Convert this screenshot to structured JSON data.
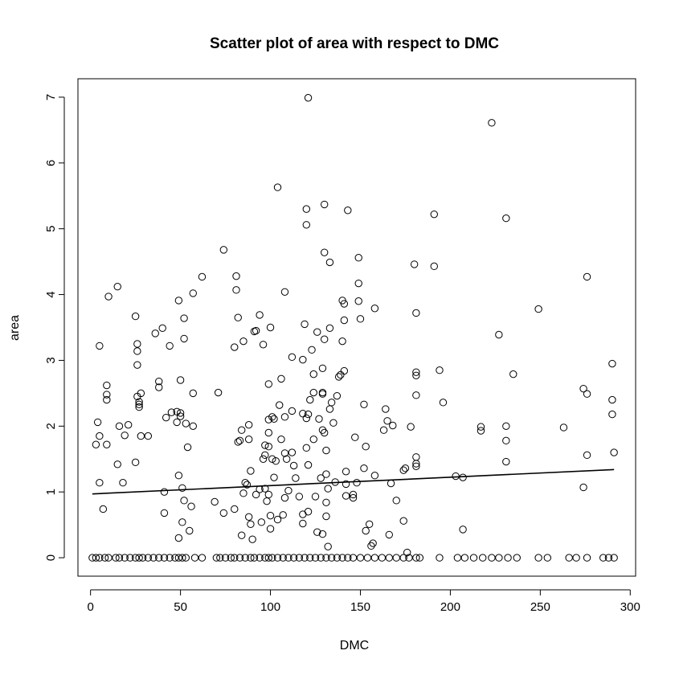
{
  "chart_data": {
    "type": "scatter",
    "title": "Scatter plot of area with respect to DMC",
    "xlabel": "DMC",
    "ylabel": "area",
    "xlim": [
      -7,
      303
    ],
    "ylim": [
      -0.28,
      7.28
    ],
    "x_ticks": [
      0,
      50,
      100,
      150,
      200,
      250,
      300
    ],
    "y_ticks": [
      0,
      1,
      2,
      3,
      4,
      5,
      6,
      7
    ],
    "grid": false,
    "legend": "none",
    "marker": "open-circle",
    "trend_line": {
      "x": [
        1,
        291
      ],
      "y": [
        0.97,
        1.34
      ]
    },
    "points": [
      [
        1,
        0
      ],
      [
        3,
        0
      ],
      [
        5,
        0
      ],
      [
        8,
        0
      ],
      [
        10,
        0
      ],
      [
        14,
        0
      ],
      [
        16,
        0
      ],
      [
        19,
        0
      ],
      [
        22,
        0
      ],
      [
        25,
        0
      ],
      [
        27,
        0
      ],
      [
        29,
        0
      ],
      [
        32,
        0
      ],
      [
        35,
        0
      ],
      [
        38,
        0
      ],
      [
        41,
        0
      ],
      [
        44,
        0
      ],
      [
        47,
        0
      ],
      [
        49,
        0
      ],
      [
        51,
        0
      ],
      [
        53,
        0
      ],
      [
        58,
        0
      ],
      [
        62,
        0
      ],
      [
        70,
        0
      ],
      [
        72,
        0
      ],
      [
        75,
        0
      ],
      [
        78,
        0
      ],
      [
        80,
        0
      ],
      [
        83,
        0
      ],
      [
        86,
        0
      ],
      [
        89,
        0
      ],
      [
        91,
        0
      ],
      [
        94,
        0
      ],
      [
        97,
        0
      ],
      [
        99,
        0
      ],
      [
        101,
        0
      ],
      [
        104,
        0
      ],
      [
        107,
        0
      ],
      [
        110,
        0
      ],
      [
        113,
        0
      ],
      [
        116,
        0
      ],
      [
        119,
        0
      ],
      [
        122,
        0
      ],
      [
        125,
        0
      ],
      [
        128,
        0
      ],
      [
        131,
        0
      ],
      [
        134,
        0
      ],
      [
        137,
        0
      ],
      [
        140,
        0
      ],
      [
        143,
        0
      ],
      [
        146,
        0
      ],
      [
        150,
        0
      ],
      [
        154,
        0
      ],
      [
        158,
        0
      ],
      [
        162,
        0
      ],
      [
        166,
        0
      ],
      [
        170,
        0
      ],
      [
        174,
        0
      ],
      [
        177,
        0
      ],
      [
        181,
        0
      ],
      [
        183,
        0
      ],
      [
        194,
        0
      ],
      [
        204,
        0
      ],
      [
        208,
        0
      ],
      [
        213,
        0
      ],
      [
        218,
        0
      ],
      [
        223,
        0
      ],
      [
        227,
        0
      ],
      [
        232,
        0
      ],
      [
        237,
        0
      ],
      [
        249,
        0
      ],
      [
        254,
        0
      ],
      [
        266,
        0
      ],
      [
        270,
        0
      ],
      [
        276,
        0
      ],
      [
        285,
        0
      ],
      [
        288,
        0
      ],
      [
        291,
        0
      ],
      [
        3,
        1.72
      ],
      [
        4,
        2.06
      ],
      [
        5,
        1.14
      ],
      [
        5,
        1.85
      ],
      [
        5,
        3.22
      ],
      [
        7,
        0.74
      ],
      [
        9,
        1.72
      ],
      [
        9,
        2.4
      ],
      [
        9,
        2.48
      ],
      [
        9,
        2.62
      ],
      [
        10,
        3.97
      ],
      [
        15,
        4.12
      ],
      [
        15,
        1.42
      ],
      [
        16,
        2.0
      ],
      [
        18,
        1.14
      ],
      [
        19,
        1.86
      ],
      [
        21,
        2.02
      ],
      [
        25,
        1.45
      ],
      [
        25,
        3.67
      ],
      [
        26,
        3.25
      ],
      [
        26,
        3.14
      ],
      [
        26,
        2.93
      ],
      [
        26,
        2.45
      ],
      [
        27,
        2.37
      ],
      [
        27,
        2.33
      ],
      [
        27,
        2.29
      ],
      [
        28,
        1.85
      ],
      [
        28,
        2.5
      ],
      [
        32,
        1.85
      ],
      [
        36,
        3.41
      ],
      [
        38,
        2.68
      ],
      [
        38,
        2.59
      ],
      [
        40,
        3.49
      ],
      [
        41,
        1.0
      ],
      [
        41,
        0.68
      ],
      [
        42,
        2.13
      ],
      [
        44,
        3.22
      ],
      [
        45,
        2.21
      ],
      [
        48,
        2.06
      ],
      [
        48,
        2.22
      ],
      [
        49,
        1.25
      ],
      [
        49,
        3.91
      ],
      [
        49,
        0.3
      ],
      [
        50,
        2.2
      ],
      [
        50,
        2.15
      ],
      [
        50,
        2.7
      ],
      [
        51,
        1.06
      ],
      [
        51,
        0.54
      ],
      [
        52,
        3.33
      ],
      [
        52,
        3.64
      ],
      [
        52,
        0.87
      ],
      [
        53,
        2.04
      ],
      [
        54,
        1.68
      ],
      [
        55,
        0.41
      ],
      [
        56,
        0.78
      ],
      [
        57,
        4.02
      ],
      [
        57,
        2.5
      ],
      [
        57,
        2.0
      ],
      [
        62,
        4.27
      ],
      [
        69,
        0.85
      ],
      [
        71,
        2.51
      ],
      [
        74,
        4.68
      ],
      [
        74,
        0.68
      ],
      [
        80,
        0.74
      ],
      [
        80,
        3.2
      ],
      [
        81,
        4.28
      ],
      [
        81,
        4.07
      ],
      [
        82,
        1.76
      ],
      [
        82,
        3.65
      ],
      [
        83,
        1.78
      ],
      [
        84,
        0.34
      ],
      [
        84,
        1.94
      ],
      [
        85,
        0.98
      ],
      [
        85,
        3.29
      ],
      [
        86,
        1.14
      ],
      [
        87,
        1.11
      ],
      [
        88,
        0.62
      ],
      [
        88,
        1.8
      ],
      [
        88,
        2.02
      ],
      [
        89,
        1.32
      ],
      [
        89,
        0.51
      ],
      [
        90,
        0.28
      ],
      [
        91,
        3.44
      ],
      [
        92,
        3.45
      ],
      [
        92,
        0.96
      ],
      [
        94,
        3.69
      ],
      [
        94,
        1.04
      ],
      [
        95,
        0.54
      ],
      [
        96,
        3.24
      ],
      [
        96,
        1.5
      ],
      [
        97,
        1.56
      ],
      [
        97,
        1.05
      ],
      [
        97,
        1.71
      ],
      [
        98,
        0.86
      ],
      [
        99,
        2.64
      ],
      [
        99,
        2.1
      ],
      [
        99,
        1.9
      ],
      [
        99,
        1.69
      ],
      [
        99,
        0.96
      ],
      [
        100,
        0.64
      ],
      [
        100,
        0.44
      ],
      [
        100,
        3.5
      ],
      [
        101,
        2.14
      ],
      [
        101,
        1.5
      ],
      [
        102,
        1.22
      ],
      [
        102,
        2.11
      ],
      [
        103,
        1.47
      ],
      [
        104,
        0.58
      ],
      [
        104,
        5.63
      ],
      [
        105,
        2.32
      ],
      [
        106,
        2.72
      ],
      [
        106,
        1.8
      ],
      [
        107,
        0.65
      ],
      [
        108,
        4.04
      ],
      [
        108,
        2.14
      ],
      [
        108,
        1.59
      ],
      [
        108,
        0.91
      ],
      [
        109,
        1.5
      ],
      [
        110,
        1.02
      ],
      [
        112,
        3.05
      ],
      [
        112,
        2.23
      ],
      [
        112,
        1.6
      ],
      [
        113,
        1.4
      ],
      [
        114,
        1.21
      ],
      [
        116,
        0.93
      ],
      [
        118,
        2.19
      ],
      [
        118,
        3.01
      ],
      [
        118,
        0.52
      ],
      [
        118,
        0.66
      ],
      [
        119,
        3.55
      ],
      [
        120,
        1.67
      ],
      [
        120,
        2.12
      ],
      [
        120,
        5.06
      ],
      [
        120,
        5.3
      ],
      [
        121,
        6.99
      ],
      [
        121,
        1.41
      ],
      [
        121,
        0.7
      ],
      [
        121,
        2.18
      ],
      [
        122,
        2.4
      ],
      [
        123,
        3.16
      ],
      [
        124,
        2.79
      ],
      [
        124,
        2.51
      ],
      [
        124,
        1.8
      ],
      [
        125,
        0.93
      ],
      [
        126,
        3.43
      ],
      [
        126,
        0.39
      ],
      [
        127,
        2.11
      ],
      [
        128,
        1.21
      ],
      [
        129,
        2.51
      ],
      [
        129,
        2.49
      ],
      [
        129,
        1.94
      ],
      [
        129,
        0.36
      ],
      [
        129,
        2.88
      ],
      [
        130,
        5.37
      ],
      [
        130,
        4.64
      ],
      [
        130,
        3.32
      ],
      [
        130,
        1.9
      ],
      [
        131,
        1.63
      ],
      [
        131,
        1.27
      ],
      [
        131,
        0.84
      ],
      [
        131,
        0.63
      ],
      [
        132,
        1.05
      ],
      [
        132,
        0.17
      ],
      [
        133,
        4.49
      ],
      [
        133,
        2.26
      ],
      [
        133,
        3.49
      ],
      [
        134,
        2.36
      ],
      [
        135,
        2.05
      ],
      [
        136,
        1.15
      ],
      [
        137,
        2.46
      ],
      [
        138,
        2.75
      ],
      [
        139,
        2.78
      ],
      [
        140,
        3.29
      ],
      [
        140,
        3.91
      ],
      [
        141,
        3.86
      ],
      [
        141,
        3.61
      ],
      [
        141,
        2.84
      ],
      [
        142,
        1.12
      ],
      [
        142,
        0.94
      ],
      [
        142,
        1.31
      ],
      [
        143,
        5.28
      ],
      [
        146,
        0.96
      ],
      [
        146,
        0.91
      ],
      [
        147,
        1.83
      ],
      [
        148,
        1.14
      ],
      [
        149,
        3.9
      ],
      [
        149,
        4.17
      ],
      [
        149,
        4.56
      ],
      [
        150,
        3.63
      ],
      [
        152,
        2.33
      ],
      [
        152,
        1.36
      ],
      [
        153,
        1.69
      ],
      [
        153,
        0.41
      ],
      [
        155,
        0.51
      ],
      [
        156,
        0.18
      ],
      [
        157,
        0.22
      ],
      [
        158,
        3.79
      ],
      [
        158,
        1.25
      ],
      [
        163,
        1.94
      ],
      [
        164,
        2.26
      ],
      [
        165,
        2.08
      ],
      [
        166,
        0.35
      ],
      [
        167,
        1.13
      ],
      [
        168,
        2.01
      ],
      [
        170,
        0.87
      ],
      [
        174,
        1.33
      ],
      [
        174,
        0.56
      ],
      [
        175,
        1.36
      ],
      [
        176,
        0.08
      ],
      [
        178,
        1.99
      ],
      [
        180,
        4.46
      ],
      [
        181,
        3.72
      ],
      [
        181,
        2.82
      ],
      [
        181,
        2.77
      ],
      [
        181,
        2.47
      ],
      [
        181,
        1.53
      ],
      [
        181,
        1.43
      ],
      [
        181,
        1.39
      ],
      [
        191,
        5.22
      ],
      [
        191,
        4.43
      ],
      [
        194,
        2.85
      ],
      [
        196,
        2.36
      ],
      [
        203,
        1.24
      ],
      [
        207,
        1.22
      ],
      [
        207,
        0.43
      ],
      [
        217,
        1.99
      ],
      [
        217,
        1.93
      ],
      [
        223,
        6.61
      ],
      [
        227,
        3.39
      ],
      [
        231,
        5.16
      ],
      [
        231,
        2.0
      ],
      [
        231,
        1.78
      ],
      [
        231,
        1.46
      ],
      [
        235,
        2.79
      ],
      [
        249,
        3.78
      ],
      [
        263,
        1.98
      ],
      [
        274,
        2.57
      ],
      [
        274,
        1.07
      ],
      [
        276,
        2.49
      ],
      [
        276,
        1.56
      ],
      [
        276,
        4.27
      ],
      [
        290,
        2.95
      ],
      [
        290,
        2.4
      ],
      [
        290,
        2.18
      ],
      [
        291,
        1.6
      ]
    ]
  }
}
